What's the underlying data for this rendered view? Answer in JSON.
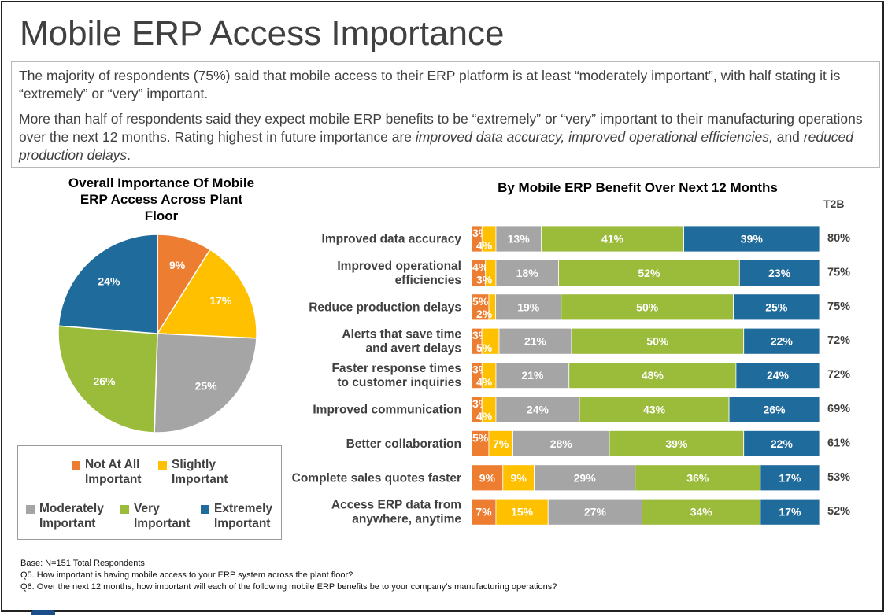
{
  "title": "Mobile ERP Access Importance",
  "summary": {
    "p1": "The majority of respondents (75%) said that mobile access to their ERP platform is at least “moderately important”, with half stating it is “extremely” or “very” important.",
    "p2_pre": "More than half of respondents said they expect mobile ERP benefits to be “extremely” or “very” important to their manufacturing operations over the next 12 months. Rating highest in future importance are ",
    "p2_em1": "improved data accuracy, improved operational efficiencies,",
    "p2_mid": " and ",
    "p2_em2": "reduced production delays",
    "p2_post": "."
  },
  "colors": {
    "not_at_all": "#ed7d31",
    "slightly": "#ffc000",
    "moderately": "#a5a5a5",
    "very": "#9bbb3b",
    "extremely": "#1f6b9b"
  },
  "legend": {
    "not_at_all": "Not At All\nImportant",
    "slightly": "Slightly\nImportant",
    "moderately": "Moderately\nImportant",
    "very": "Very\nImportant",
    "extremely": "Extremely\nImportant"
  },
  "footnotes": {
    "base": "Base: N=151 Total Respondents",
    "q5": "Q5. How important is having mobile access to your ERP system across the plant floor?",
    "q6": "Q6. Over the next 12 months, how important will each of the following mobile ERP benefits be to your company’s manufacturing operations?"
  },
  "chart_data": [
    {
      "type": "pie",
      "title": "Overall Importance Of Mobile ERP Access Across Plant Floor",
      "slices": [
        {
          "name": "Not At All Important",
          "value": 9,
          "label": "9%",
          "color": "#ed7d31"
        },
        {
          "name": "Slightly Important",
          "value": 17,
          "label": "17%",
          "color": "#ffc000"
        },
        {
          "name": "Moderately Important",
          "value": 25,
          "label": "25%",
          "color": "#a5a5a5"
        },
        {
          "name": "Very Important",
          "value": 26,
          "label": "26%",
          "color": "#9bbb3b"
        },
        {
          "name": "Extremely Important",
          "value": 24,
          "label": "24%",
          "color": "#1f6b9b"
        }
      ]
    },
    {
      "type": "bar",
      "orientation": "horizontal",
      "stacked": true,
      "title": "By Mobile ERP Benefit Over Next 12 Months",
      "t2b_header": "T2B",
      "categories": [
        "Improved data accuracy",
        "Improved operational\nefficiencies",
        "Reduce production delays",
        "Alerts that save time\nand avert delays",
        "Faster response times\nto customer inquiries",
        "Improved communication",
        "Better collaboration",
        "Complete sales quotes faster",
        "Access ERP data from\nanywhere, anytime"
      ],
      "series": [
        {
          "name": "Not At All Important",
          "color": "#ed7d31",
          "values": [
            3,
            4,
            5,
            3,
            3,
            3,
            5,
            9,
            7
          ]
        },
        {
          "name": "Slightly Important",
          "color": "#ffc000",
          "values": [
            4,
            3,
            2,
            5,
            4,
            4,
            7,
            9,
            15
          ]
        },
        {
          "name": "Moderately Important",
          "color": "#a5a5a5",
          "values": [
            13,
            18,
            19,
            21,
            21,
            24,
            28,
            29,
            27
          ]
        },
        {
          "name": "Very Important",
          "color": "#9bbb3b",
          "values": [
            41,
            52,
            50,
            50,
            48,
            43,
            39,
            36,
            34
          ]
        },
        {
          "name": "Extremely Important",
          "color": "#1f6b9b",
          "values": [
            39,
            23,
            25,
            22,
            24,
            26,
            22,
            17,
            17
          ]
        }
      ],
      "t2b": [
        "80%",
        "75%",
        "75%",
        "72%",
        "72%",
        "69%",
        "61%",
        "53%",
        "52%"
      ]
    }
  ]
}
